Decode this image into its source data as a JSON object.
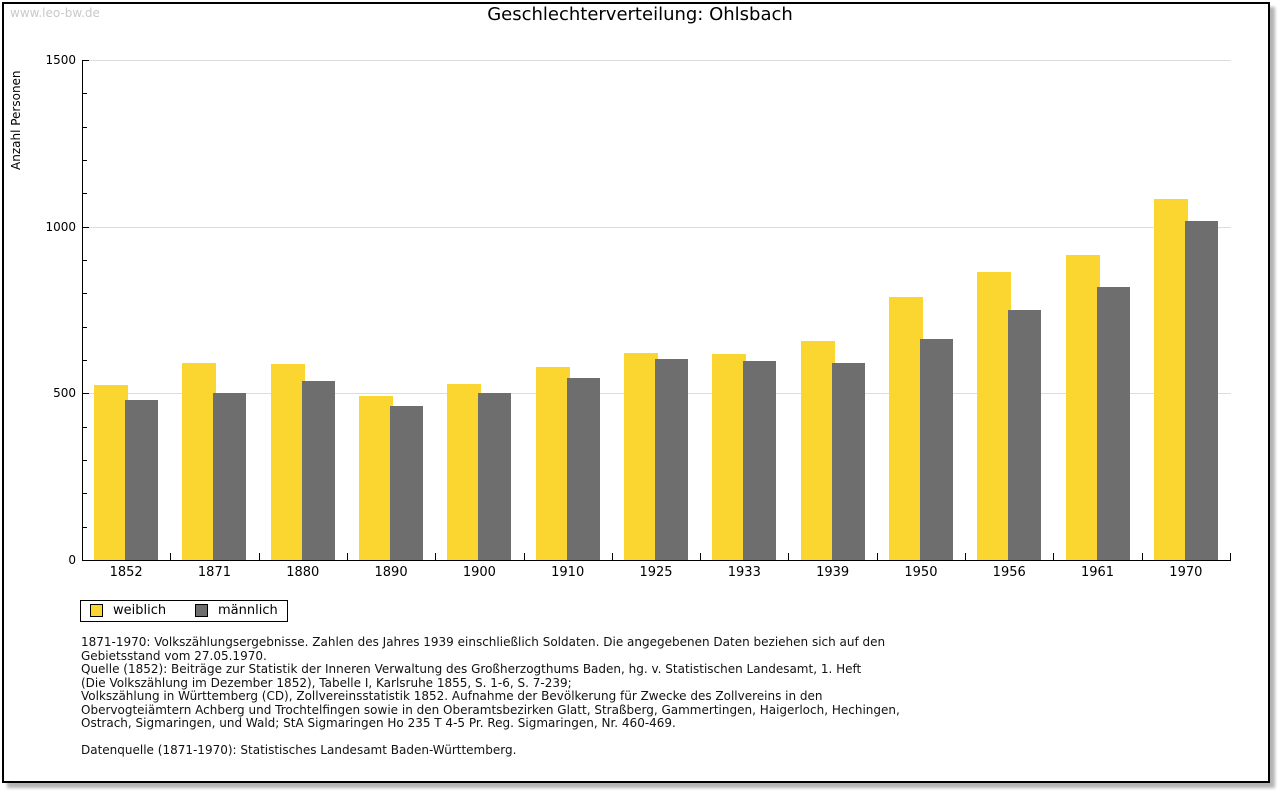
{
  "watermark": "www.leo-bw.de",
  "chart_data": {
    "type": "bar",
    "title": "Geschlechterverteilung: Ohlsbach",
    "xlabel": "",
    "ylabel": "Anzahl Personen",
    "ylim": [
      0,
      1500
    ],
    "yticks": [
      0,
      500,
      1000,
      1500
    ],
    "minor_ytick_step": 100,
    "grid": true,
    "legend_position": "bottom-left",
    "categories": [
      "1852",
      "1871",
      "1880",
      "1890",
      "1900",
      "1910",
      "1925",
      "1933",
      "1939",
      "1950",
      "1956",
      "1961",
      "1970"
    ],
    "series": [
      {
        "name": "weiblich",
        "color": "#FBD631",
        "values": [
          525,
          590,
          587,
          492,
          527,
          580,
          621,
          619,
          658,
          788,
          864,
          916,
          1084
        ]
      },
      {
        "name": "männlich",
        "color": "#6E6E6E",
        "values": [
          480,
          500,
          537,
          462,
          502,
          545,
          604,
          597,
          591,
          663,
          750,
          820,
          1018
        ]
      }
    ]
  },
  "colors": {
    "grid": "#dcdcdc",
    "axis": "#000000",
    "watermark": "#c9c9c9"
  },
  "footnotes": [
    "1871-1970: Volkszählungsergebnisse. Zahlen des Jahres 1939 einschließlich Soldaten. Die angegebenen Daten beziehen sich auf den",
    "Gebietsstand vom 27.05.1970.",
    "Quelle (1852): Beiträge zur Statistik der Inneren Verwaltung des Großherzogthums Baden, hg. v. Statistischen Landesamt, 1. Heft",
    "(Die Volkszählung im Dezember 1852), Tabelle I, Karlsruhe 1855, S. 1-6, S. 7-239;",
    "Volkszählung in Württemberg (CD), Zollvereinsstatistik 1852. Aufnahme der Bevölkerung für Zwecke des Zollvereins in den",
    "Obervogteiämtern Achberg und Trochtelfingen sowie in den Oberamtsbezirken Glatt, Straßberg, Gammertingen, Haigerloch, Hechingen,",
    "Ostrach, Sigmaringen, und Wald; StA Sigmaringen Ho 235 T 4-5 Pr. Reg. Sigmaringen, Nr. 460-469.",
    "",
    "Datenquelle (1871-1970): Statistisches Landesamt Baden-Württemberg."
  ]
}
